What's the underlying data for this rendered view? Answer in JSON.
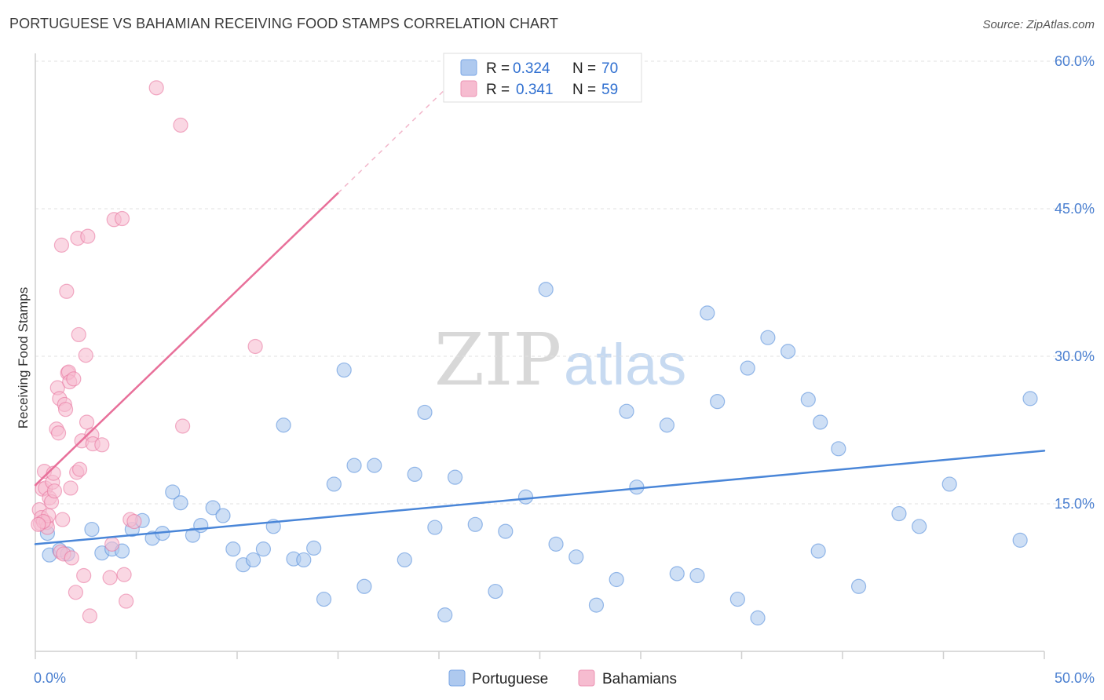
{
  "title": "PORTUGUESE VS BAHAMIAN RECEIVING FOOD STAMPS CORRELATION CHART",
  "source": "Source: ZipAtlas.com",
  "watermark": {
    "zip": "ZIP",
    "atlas": "atlas"
  },
  "legend_top": {
    "rows": [
      {
        "r_label": "R =",
        "r_value": "0.324",
        "n_label": "N =",
        "n_value": "70",
        "color": "#aec9ef"
      },
      {
        "r_label": "R =",
        "r_value": "0.341",
        "n_label": "N =",
        "n_value": "59",
        "color": "#f6bcd0"
      }
    ]
  },
  "legend_bottom": {
    "items": [
      {
        "label": "Portuguese",
        "color": "#aec9ef"
      },
      {
        "label": "Bahamians",
        "color": "#f6bcd0"
      }
    ]
  },
  "chart_data": {
    "type": "scatter",
    "title": "PORTUGUESE VS BAHAMIAN RECEIVING FOOD STAMPS CORRELATION CHART",
    "xlabel": "",
    "ylabel": "Receiving Food Stamps",
    "xlim": [
      0,
      50
    ],
    "ylim": [
      0,
      60
    ],
    "x_tick_labels": [
      "0.0%",
      "50.0%"
    ],
    "y_ticks": [
      15,
      30,
      45,
      60
    ],
    "y_tick_labels": [
      "15.0%",
      "30.0%",
      "45.0%",
      "60.0%"
    ],
    "grid": true,
    "legend_placement": "top-center and bottom",
    "series": [
      {
        "name": "Portuguese",
        "color": "#4a86d8",
        "fill": "#aec9ef",
        "trend": {
          "x": [
            0,
            50
          ],
          "y": [
            10.9,
            20.4
          ]
        },
        "points": [
          [
            0.6,
            12.0
          ],
          [
            0.7,
            9.8
          ],
          [
            1.2,
            10.3
          ],
          [
            1.6,
            9.9
          ],
          [
            2.8,
            12.4
          ],
          [
            3.3,
            10.0
          ],
          [
            3.8,
            10.4
          ],
          [
            4.3,
            10.2
          ],
          [
            4.8,
            12.4
          ],
          [
            5.3,
            13.3
          ],
          [
            5.8,
            11.5
          ],
          [
            6.3,
            12.0
          ],
          [
            6.8,
            16.2
          ],
          [
            7.2,
            15.1
          ],
          [
            7.8,
            11.8
          ],
          [
            8.2,
            12.8
          ],
          [
            8.8,
            14.6
          ],
          [
            9.3,
            13.8
          ],
          [
            9.8,
            10.4
          ],
          [
            10.3,
            8.8
          ],
          [
            10.8,
            9.3
          ],
          [
            11.3,
            10.4
          ],
          [
            11.8,
            12.7
          ],
          [
            12.3,
            23.0
          ],
          [
            12.8,
            9.4
          ],
          [
            13.3,
            9.3
          ],
          [
            13.8,
            10.5
          ],
          [
            14.3,
            5.3
          ],
          [
            14.8,
            17.0
          ],
          [
            15.3,
            28.6
          ],
          [
            15.8,
            18.9
          ],
          [
            16.3,
            6.6
          ],
          [
            16.8,
            18.9
          ],
          [
            18.3,
            9.3
          ],
          [
            18.8,
            18.0
          ],
          [
            19.3,
            24.3
          ],
          [
            19.8,
            12.6
          ],
          [
            20.3,
            3.7
          ],
          [
            20.8,
            17.7
          ],
          [
            21.8,
            12.9
          ],
          [
            22.8,
            6.1
          ],
          [
            23.3,
            12.2
          ],
          [
            24.3,
            15.7
          ],
          [
            25.3,
            36.8
          ],
          [
            25.8,
            10.9
          ],
          [
            26.8,
            9.6
          ],
          [
            27.8,
            4.7
          ],
          [
            28.8,
            7.3
          ],
          [
            29.3,
            24.4
          ],
          [
            29.8,
            16.7
          ],
          [
            31.3,
            23.0
          ],
          [
            31.8,
            7.9
          ],
          [
            32.8,
            7.7
          ],
          [
            33.3,
            34.4
          ],
          [
            33.8,
            25.4
          ],
          [
            34.8,
            5.3
          ],
          [
            35.3,
            28.8
          ],
          [
            35.8,
            3.4
          ],
          [
            36.3,
            31.9
          ],
          [
            37.3,
            30.5
          ],
          [
            38.3,
            25.6
          ],
          [
            38.8,
            10.2
          ],
          [
            38.9,
            23.3
          ],
          [
            39.8,
            20.6
          ],
          [
            40.8,
            6.6
          ],
          [
            42.8,
            14.0
          ],
          [
            43.8,
            12.7
          ],
          [
            45.3,
            17.0
          ],
          [
            48.8,
            11.3
          ],
          [
            49.3,
            25.7
          ]
        ]
      },
      {
        "name": "Bahamians",
        "color": "#e8709a",
        "fill": "#f6bcd0",
        "trend": {
          "x": [
            0,
            15
          ],
          "y": [
            16.9,
            46.6
          ]
        },
        "trend_dashed": {
          "x": [
            15,
            21.5
          ],
          "y": [
            46.6,
            59.5
          ]
        },
        "points": [
          [
            0.2,
            14.4
          ],
          [
            0.25,
            13.0
          ],
          [
            0.3,
            13.6
          ],
          [
            0.35,
            16.5
          ],
          [
            0.45,
            18.3
          ],
          [
            0.5,
            16.6
          ],
          [
            0.55,
            13.1
          ],
          [
            0.6,
            12.6
          ],
          [
            0.65,
            13.8
          ],
          [
            0.7,
            15.6
          ],
          [
            0.8,
            15.2
          ],
          [
            0.85,
            17.2
          ],
          [
            0.9,
            18.1
          ],
          [
            0.95,
            16.3
          ],
          [
            1.05,
            22.6
          ],
          [
            1.1,
            26.8
          ],
          [
            1.15,
            22.2
          ],
          [
            1.2,
            25.7
          ],
          [
            1.25,
            10.1
          ],
          [
            1.3,
            41.3
          ],
          [
            1.35,
            13.4
          ],
          [
            1.4,
            9.9
          ],
          [
            1.45,
            25.1
          ],
          [
            1.5,
            24.6
          ],
          [
            1.55,
            36.6
          ],
          [
            1.6,
            28.3
          ],
          [
            1.65,
            28.4
          ],
          [
            1.7,
            27.4
          ],
          [
            1.75,
            16.6
          ],
          [
            1.8,
            9.5
          ],
          [
            1.9,
            27.7
          ],
          [
            2.0,
            6.0
          ],
          [
            2.05,
            18.2
          ],
          [
            2.1,
            42.0
          ],
          [
            2.15,
            32.2
          ],
          [
            2.2,
            18.5
          ],
          [
            2.3,
            21.4
          ],
          [
            2.4,
            7.7
          ],
          [
            2.5,
            30.1
          ],
          [
            2.55,
            23.3
          ],
          [
            2.6,
            42.2
          ],
          [
            2.7,
            3.6
          ],
          [
            2.8,
            22.0
          ],
          [
            2.85,
            21.1
          ],
          [
            3.3,
            21.0
          ],
          [
            3.7,
            7.5
          ],
          [
            3.8,
            10.9
          ],
          [
            3.9,
            43.9
          ],
          [
            4.3,
            44.0
          ],
          [
            4.4,
            7.8
          ],
          [
            4.5,
            5.1
          ],
          [
            4.7,
            13.4
          ],
          [
            4.9,
            13.2
          ],
          [
            6.0,
            57.3
          ],
          [
            7.2,
            53.5
          ],
          [
            7.3,
            22.9
          ],
          [
            10.9,
            31.0
          ],
          [
            0.4,
            13.2
          ],
          [
            0.15,
            12.9
          ]
        ]
      }
    ]
  }
}
